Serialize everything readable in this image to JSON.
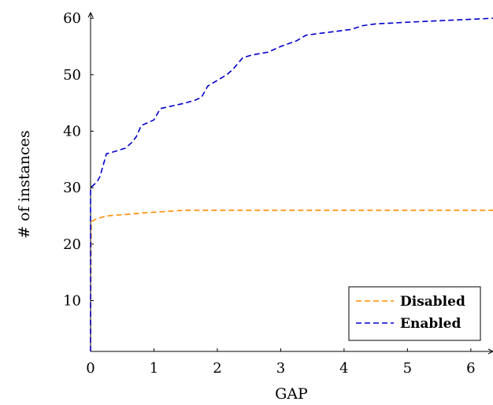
{
  "chart_data": {
    "type": "line",
    "xlabel": "GAP",
    "ylabel": "# of instances",
    "xlim": [
      0,
      6.35
    ],
    "ylim": [
      1,
      61
    ],
    "x_ticks": [
      0,
      1,
      2,
      3,
      4,
      5,
      6
    ],
    "y_ticks": [
      10,
      20,
      30,
      40,
      50,
      60
    ],
    "grid": false,
    "legend_position": "bottom-right",
    "line_style": "dashed",
    "series": [
      {
        "name": "Disabled",
        "color": "#ff8c00",
        "points": [
          [
            0,
            1
          ],
          [
            0.01,
            24
          ],
          [
            0.1,
            24.5
          ],
          [
            0.25,
            25
          ],
          [
            0.5,
            25.2
          ],
          [
            0.8,
            25.5
          ],
          [
            1.2,
            25.8
          ],
          [
            1.5,
            26
          ],
          [
            2,
            26
          ],
          [
            3,
            26
          ],
          [
            4,
            26
          ],
          [
            5,
            26
          ],
          [
            6,
            26
          ],
          [
            6.35,
            26
          ]
        ]
      },
      {
        "name": "Enabled",
        "color": "#0000cc",
        "points": [
          [
            0,
            1
          ],
          [
            0,
            30
          ],
          [
            0.1,
            31
          ],
          [
            0.15,
            32
          ],
          [
            0.2,
            34
          ],
          [
            0.25,
            36
          ],
          [
            0.35,
            36.3
          ],
          [
            0.55,
            37
          ],
          [
            0.65,
            38
          ],
          [
            0.72,
            39
          ],
          [
            0.8,
            41
          ],
          [
            0.9,
            41.5
          ],
          [
            1.0,
            42
          ],
          [
            1.1,
            44
          ],
          [
            1.3,
            44.5
          ],
          [
            1.5,
            45
          ],
          [
            1.65,
            45.5
          ],
          [
            1.75,
            46
          ],
          [
            1.85,
            48
          ],
          [
            2.0,
            49
          ],
          [
            2.15,
            50
          ],
          [
            2.25,
            51
          ],
          [
            2.4,
            53
          ],
          [
            2.55,
            53.5
          ],
          [
            2.8,
            54
          ],
          [
            3.0,
            55
          ],
          [
            3.25,
            56
          ],
          [
            3.4,
            57
          ],
          [
            3.6,
            57.3
          ],
          [
            4.1,
            58
          ],
          [
            4.3,
            58.7
          ],
          [
            4.5,
            59
          ],
          [
            5,
            59.3
          ],
          [
            6.35,
            60
          ]
        ]
      }
    ]
  }
}
